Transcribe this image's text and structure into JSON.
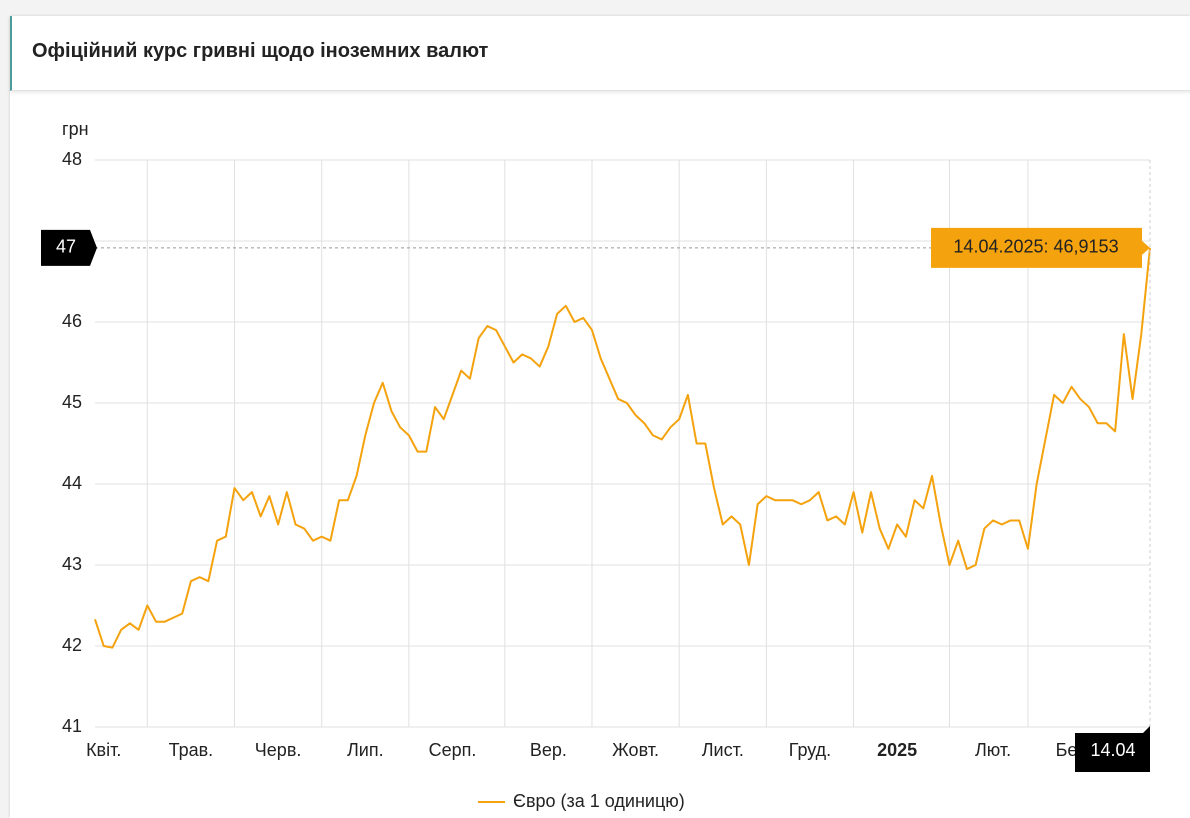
{
  "header": {
    "title": "Офіційний курс гривні щодо іноземних валют"
  },
  "chart_data": {
    "type": "line",
    "y_label": "грн",
    "series": [
      {
        "name": "Євро (за 1 одиницю)",
        "color": "#f4a20d",
        "values": [
          42.33,
          42.0,
          41.98,
          42.2,
          42.28,
          42.2,
          42.5,
          42.3,
          42.3,
          42.35,
          42.4,
          42.8,
          42.85,
          42.8,
          43.3,
          43.35,
          43.95,
          43.8,
          43.9,
          43.6,
          43.85,
          43.5,
          43.9,
          43.5,
          43.45,
          43.3,
          43.35,
          43.3,
          43.8,
          43.8,
          44.1,
          44.6,
          45.0,
          45.25,
          44.9,
          44.7,
          44.6,
          44.4,
          44.4,
          44.95,
          44.8,
          45.1,
          45.4,
          45.3,
          45.8,
          45.95,
          45.9,
          45.7,
          45.5,
          45.6,
          45.55,
          45.45,
          45.7,
          46.1,
          46.2,
          46.0,
          46.05,
          45.9,
          45.55,
          45.3,
          45.05,
          45.0,
          44.85,
          44.75,
          44.6,
          44.55,
          44.7,
          44.8,
          45.1,
          44.5,
          44.5,
          43.95,
          43.5,
          43.6,
          43.5,
          43.0,
          43.75,
          43.85,
          43.8,
          43.8,
          43.8,
          43.75,
          43.8,
          43.9,
          43.55,
          43.6,
          43.5,
          43.9,
          43.4,
          43.9,
          43.45,
          43.2,
          43.5,
          43.35,
          43.8,
          43.7,
          44.1,
          43.5,
          43.0,
          43.3,
          42.95,
          43.0,
          43.45,
          43.55,
          43.5,
          43.55,
          43.55,
          43.2,
          44.0,
          44.55,
          45.1,
          45.0,
          45.2,
          45.05,
          44.95,
          44.75,
          44.75,
          44.65,
          45.85,
          45.05,
          45.85,
          46.9153
        ]
      }
    ],
    "xlim": [
      0,
      121
    ],
    "xticks": [
      {
        "value": -4,
        "label": "Квіт."
      },
      {
        "value": 6,
        "label": "Трав."
      },
      {
        "value": 16,
        "label": "Черв."
      },
      {
        "value": 26,
        "label": "Лип."
      },
      {
        "value": 36,
        "label": "Серп."
      },
      {
        "value": 47,
        "label": "Вер."
      },
      {
        "value": 57,
        "label": "Жовт."
      },
      {
        "value": 67,
        "label": "Лист."
      },
      {
        "value": 77,
        "label": "Груд."
      },
      {
        "value": 87,
        "label": "2025"
      },
      {
        "value": 98,
        "label": "Лют."
      },
      {
        "value": 107,
        "label": "Бер"
      }
    ],
    "ylim": [
      41,
      48
    ],
    "yticks": [
      41,
      42,
      43,
      44,
      45,
      46,
      47,
      48
    ],
    "grid": true,
    "crosshair": {
      "y_label": "47",
      "x_label": "14.04",
      "tooltip": "14.04.2025: 46,9153"
    }
  }
}
